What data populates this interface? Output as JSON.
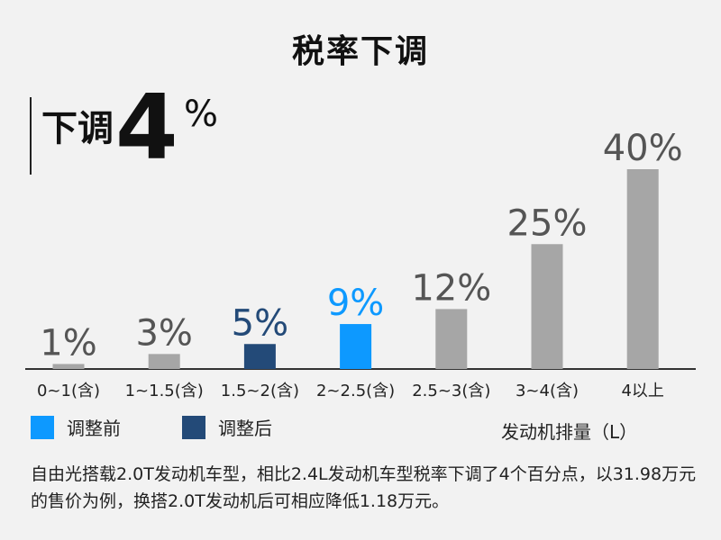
{
  "title": "税率下调",
  "highlight": {
    "label": "下调",
    "number": "4",
    "unit": "%"
  },
  "colors": {
    "before": "#0d99ff",
    "after": "#234a78",
    "other": "#a6a6a6",
    "axis": "#333333"
  },
  "legend": [
    {
      "label": "调整前",
      "color": "#0d99ff"
    },
    {
      "label": "调整后",
      "color": "#234a78"
    }
  ],
  "chart_data": {
    "type": "bar",
    "categories": [
      "0~1(含)",
      "1~1.5(含)",
      "1.5~2(含)",
      "2~2.5(含)",
      "2.5~3(含)",
      "3~4(含)",
      "4以上"
    ],
    "values": [
      1,
      3,
      5,
      9,
      12,
      25,
      40
    ],
    "value_labels": [
      "1%",
      "3%",
      "5%",
      "9%",
      "12%",
      "25%",
      "40%"
    ],
    "bar_color_keys": [
      "other",
      "other",
      "after",
      "before",
      "other",
      "other",
      "other"
    ],
    "xlabel": "发动机排量（L）",
    "ylabel": "",
    "ylim": [
      0,
      40
    ],
    "grid": false,
    "legend_position": "bottom-left"
  },
  "note": "自由光搭载2.0T发动机车型，相比2.4L发动机车型税率下调了4个百分点，以31.98万元的售价为例，换搭2.0T发动机后可相应降低1.18万元。"
}
